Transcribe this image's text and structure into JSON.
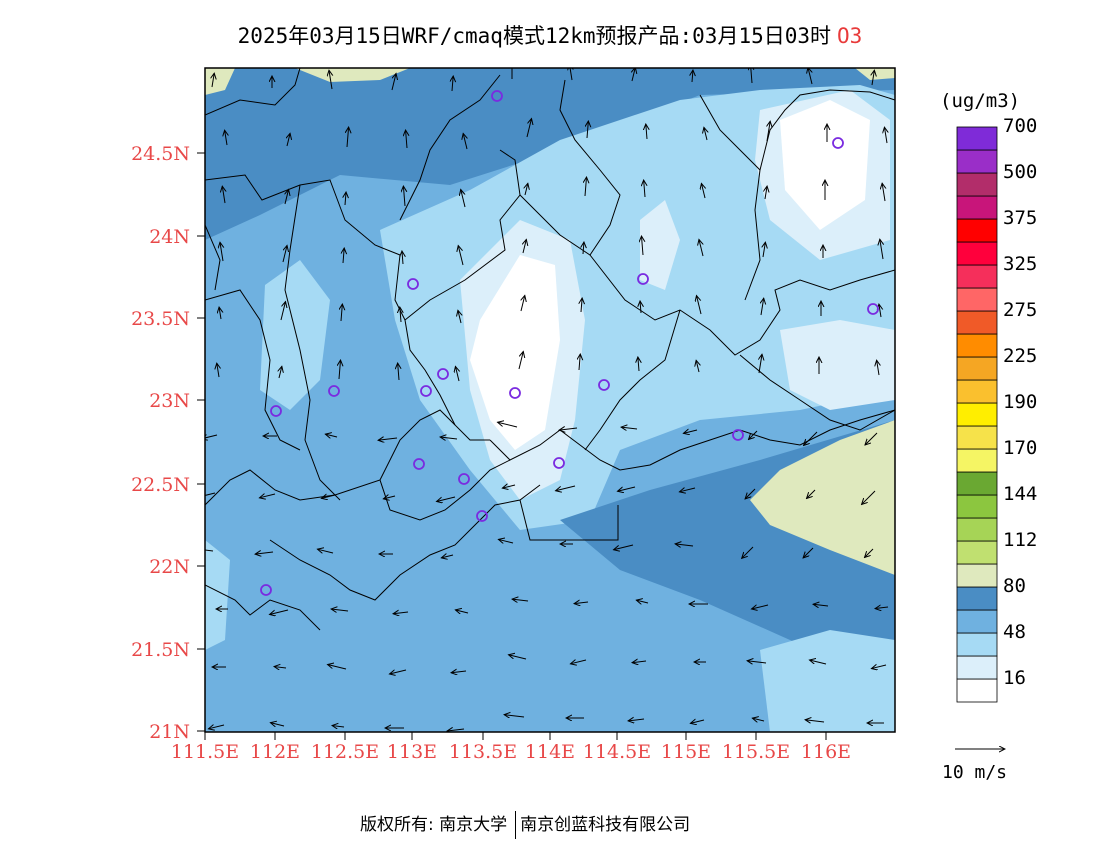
{
  "title": {
    "main": "2025年03月15日WRF/cmaq模式12km预报产品:03月15日03时",
    "pollutant": "O3"
  },
  "map": {
    "lat_labels": [
      "24.5N",
      "24N",
      "23.5N",
      "23N",
      "22.5N",
      "22N",
      "21.5N",
      "21N"
    ],
    "lon_labels": [
      "111.5E",
      "112E",
      "112.5E",
      "113E",
      "113.5E",
      "114E",
      "114.5E",
      "115E",
      "115.5E",
      "116E"
    ],
    "station_count": 18
  },
  "colorbar": {
    "units": "(ug/m3)",
    "colors": [
      "#ffffff",
      "#dceffa",
      "#a6daf4",
      "#6fb1e0",
      "#4a8dc4",
      "#dfe9be",
      "#c0e070",
      "#a6d456",
      "#8cc63f",
      "#6aa832",
      "#f5f564",
      "#f6e24a",
      "#ffee00",
      "#fac02e",
      "#f5a623",
      "#ff8c00",
      "#f05a28",
      "#ff6666",
      "#f52f5b",
      "#ff003c",
      "#ff0000",
      "#c8157a",
      "#b22d6a",
      "#9a2ec8",
      "#7f2bd8"
    ],
    "labels": [
      "16",
      "48",
      "80",
      "112",
      "144",
      "170",
      "190",
      "225",
      "275",
      "325",
      "375",
      "500",
      "700"
    ]
  },
  "wind_scale": {
    "label": "10 m/s"
  },
  "footer": {
    "copyright": "版权所有: 南京大学",
    "company": "南京创蓝科技有限公司"
  }
}
